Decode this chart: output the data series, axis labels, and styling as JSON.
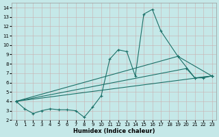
{
  "bg_color": "#c5e8e8",
  "grid_color": "#c8b0b0",
  "line_color": "#1a7068",
  "marker": "+",
  "markersize": 3,
  "markeredgewidth": 0.8,
  "linewidth": 0.8,
  "xlabel": "Humidex (Indice chaleur)",
  "xlabel_fontsize": 6,
  "xlabel_fontweight": "bold",
  "xlim": [
    -0.5,
    23.5
  ],
  "ylim": [
    2.0,
    14.5
  ],
  "yticks": [
    2,
    3,
    4,
    5,
    6,
    7,
    8,
    9,
    10,
    11,
    12,
    13,
    14
  ],
  "xticks": [
    0,
    1,
    2,
    3,
    4,
    5,
    6,
    7,
    8,
    9,
    10,
    11,
    12,
    13,
    14,
    15,
    16,
    17,
    18,
    19,
    20,
    21,
    22,
    23
  ],
  "tick_labelsize": 5,
  "series": [
    {
      "x": [
        0,
        1,
        2,
        3,
        4,
        5,
        6,
        7,
        8,
        9,
        10,
        11,
        12,
        13,
        14,
        15,
        16,
        17,
        19,
        21,
        22,
        23
      ],
      "y": [
        4.0,
        3.2,
        2.7,
        3.0,
        3.2,
        3.1,
        3.1,
        3.0,
        2.3,
        3.4,
        4.6,
        8.5,
        9.5,
        9.3,
        6.7,
        13.3,
        13.8,
        11.5,
        8.8,
        6.5,
        6.5,
        6.7
      ]
    },
    {
      "x": [
        0,
        23
      ],
      "y": [
        4.0,
        6.7
      ]
    },
    {
      "x": [
        0,
        19,
        23
      ],
      "y": [
        4.0,
        8.8,
        6.7
      ]
    },
    {
      "x": [
        0,
        20,
        21,
        23
      ],
      "y": [
        4.0,
        7.5,
        6.5,
        6.7
      ]
    }
  ]
}
